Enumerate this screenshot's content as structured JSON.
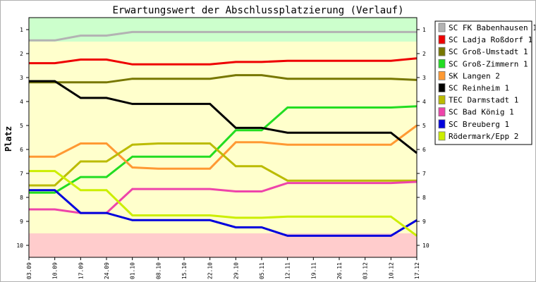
{
  "chart_data": {
    "type": "line",
    "title": "Erwartungswert der Abschlussplatzierung (Verlauf)",
    "ylabel": "Platz",
    "xlabel": "",
    "x": [
      "03.09",
      "10.09",
      "17.09",
      "24.09",
      "01.10",
      "08.10",
      "15.10",
      "22.10",
      "29.10",
      "05.11",
      "12.11",
      "19.11",
      "26.11",
      "03.12",
      "10.12",
      "17.12"
    ],
    "ylim": [
      10.5,
      0.5
    ],
    "yticks": [
      1,
      2,
      3,
      4,
      5,
      6,
      7,
      8,
      9,
      10
    ],
    "y_inverted": true,
    "grid": false,
    "legend_position": "right",
    "bands": [
      {
        "from": 0.5,
        "to": 1.5,
        "color": "#ccffcc"
      },
      {
        "from": 1.5,
        "to": 9.5,
        "color": "#ffffcc"
      },
      {
        "from": 9.5,
        "to": 10.5,
        "color": "#ffcccc"
      }
    ],
    "series": [
      {
        "name": "SC FK Babenhausen 1",
        "color": "#b3b3b3",
        "values": [
          1.45,
          1.45,
          1.25,
          1.25,
          1.1,
          1.1,
          1.1,
          1.1,
          1.1,
          1.1,
          1.1,
          1.1,
          1.1,
          1.1,
          1.1,
          1.1
        ]
      },
      {
        "name": "SC Ladja Roßdorf 1",
        "color": "#ee0000",
        "values": [
          2.4,
          2.4,
          2.25,
          2.25,
          2.45,
          2.45,
          2.45,
          2.45,
          2.35,
          2.35,
          2.3,
          2.3,
          2.3,
          2.3,
          2.3,
          2.2
        ]
      },
      {
        "name": "SC Groß-Umstadt 1",
        "color": "#777700",
        "values": [
          3.2,
          3.2,
          3.2,
          3.2,
          3.05,
          3.05,
          3.05,
          3.05,
          2.9,
          2.9,
          3.05,
          3.05,
          3.05,
          3.05,
          3.05,
          3.1
        ]
      },
      {
        "name": "SC Groß-Zimmern 1",
        "color": "#22dd22",
        "values": [
          7.8,
          7.8,
          7.15,
          7.15,
          6.3,
          6.3,
          6.3,
          6.3,
          5.2,
          5.2,
          4.25,
          4.25,
          4.25,
          4.25,
          4.25,
          4.2
        ]
      },
      {
        "name": "SK Langen 2",
        "color": "#ff9933",
        "values": [
          6.3,
          6.3,
          5.75,
          5.75,
          6.75,
          6.8,
          6.8,
          6.8,
          5.7,
          5.7,
          5.8,
          5.8,
          5.8,
          5.8,
          5.8,
          5.0
        ]
      },
      {
        "name": "SC Reinheim 1",
        "color": "#000000",
        "values": [
          3.15,
          3.15,
          3.85,
          3.85,
          4.1,
          4.1,
          4.1,
          4.1,
          5.1,
          5.1,
          5.3,
          5.3,
          5.3,
          5.3,
          5.3,
          6.15
        ]
      },
      {
        "name": "TEC Darmstadt 1",
        "color": "#bbbb00",
        "values": [
          7.5,
          7.5,
          6.5,
          6.5,
          5.8,
          5.75,
          5.75,
          5.75,
          6.7,
          6.7,
          7.3,
          7.3,
          7.3,
          7.3,
          7.3,
          7.3
        ]
      },
      {
        "name": "SC Bad König 1",
        "color": "#ee44aa",
        "values": [
          8.5,
          8.5,
          8.65,
          8.65,
          7.65,
          7.65,
          7.65,
          7.65,
          7.75,
          7.75,
          7.4,
          7.4,
          7.4,
          7.4,
          7.4,
          7.35
        ]
      },
      {
        "name": "SC Breuberg 1",
        "color": "#0000dd",
        "values": [
          7.7,
          7.7,
          8.65,
          8.65,
          8.95,
          8.95,
          8.95,
          8.95,
          9.25,
          9.25,
          9.6,
          9.6,
          9.6,
          9.6,
          9.6,
          8.95
        ]
      },
      {
        "name": "Rödermark/Epp 2",
        "color": "#ccee00",
        "values": [
          6.9,
          6.9,
          7.7,
          7.7,
          8.75,
          8.75,
          8.75,
          8.75,
          8.85,
          8.85,
          8.8,
          8.8,
          8.8,
          8.8,
          8.8,
          9.6
        ]
      }
    ]
  }
}
